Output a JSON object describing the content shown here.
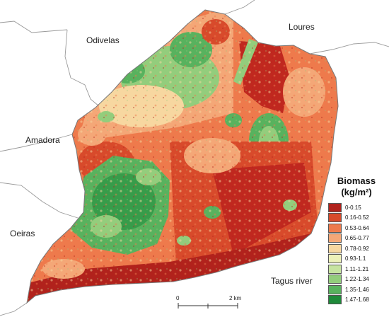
{
  "map": {
    "place_labels": {
      "odivelas": "Odivelas",
      "loures": "Loures",
      "amadora": "Amadora",
      "oeiras": "Oeiras",
      "tagus": "Tagus river"
    },
    "legend": {
      "title": "Biomass",
      "unit": "(kg/m²)",
      "classes": [
        {
          "label": "0-0.15",
          "color": "#b1221c"
        },
        {
          "label": "0.16-0.52",
          "color": "#d84a2b"
        },
        {
          "label": "0.53-0.64",
          "color": "#ee7a4c"
        },
        {
          "label": "0.65-0.77",
          "color": "#f4a777"
        },
        {
          "label": "0.78-0.92",
          "color": "#f7d7a0"
        },
        {
          "label": "0.93-1.1",
          "color": "#ecf0b8"
        },
        {
          "label": "1.11-1.21",
          "color": "#c6e3a0"
        },
        {
          "label": "1.22-1.34",
          "color": "#93cd7c"
        },
        {
          "label": "1.35-1.46",
          "color": "#58b25e"
        },
        {
          "label": "1.47-1.68",
          "color": "#1e8a3a"
        }
      ]
    },
    "scale": {
      "start": "0",
      "end": "2 km"
    }
  }
}
